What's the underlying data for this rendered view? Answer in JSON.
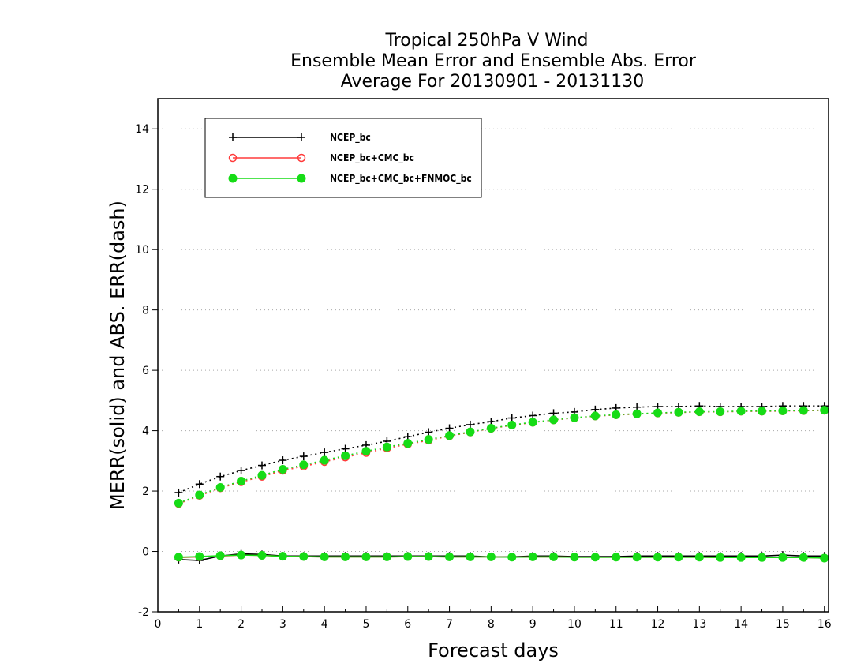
{
  "chart_data": {
    "type": "line",
    "title": [
      "Tropical 250hPa V Wind",
      "Ensemble Mean Error and Ensemble Abs. Error",
      "Average For 20130901 - 20131130"
    ],
    "xlabel": "Forecast days",
    "ylabel": "MERR(solid) and ABS. ERR(dash)",
    "xlim": [
      0,
      16.1
    ],
    "ylim": [
      -2,
      15
    ],
    "xticks": [
      "0",
      "1",
      "2",
      "3",
      "4",
      "5",
      "6",
      "7",
      "8",
      "9",
      "10",
      "11",
      "12",
      "13",
      "14",
      "15",
      "16"
    ],
    "yticks": [
      "-2",
      "0",
      "2",
      "4",
      "6",
      "8",
      "10",
      "12",
      "14"
    ],
    "grid": "dotted-horizontal",
    "legend_position": "top-left",
    "x": [
      0.5,
      1,
      1.5,
      2,
      2.5,
      3,
      3.5,
      4,
      4.5,
      5,
      5.5,
      6,
      6.5,
      7,
      7.5,
      8,
      8.5,
      9,
      9.5,
      10,
      10.5,
      11,
      11.5,
      12,
      12.5,
      13,
      13.5,
      14,
      14.5,
      15,
      15.5,
      16
    ],
    "series": [
      {
        "name": "NCEP_bc",
        "color": "#000000",
        "marker": "plus",
        "merr": [
          -0.27,
          -0.3,
          -0.15,
          -0.08,
          -0.1,
          -0.15,
          -0.15,
          -0.15,
          -0.15,
          -0.15,
          -0.15,
          -0.15,
          -0.15,
          -0.15,
          -0.15,
          -0.18,
          -0.18,
          -0.15,
          -0.15,
          -0.17,
          -0.17,
          -0.17,
          -0.15,
          -0.15,
          -0.15,
          -0.15,
          -0.15,
          -0.15,
          -0.15,
          -0.12,
          -0.15,
          -0.15
        ],
        "abs_err": [
          1.95,
          2.23,
          2.48,
          2.68,
          2.85,
          3.02,
          3.15,
          3.28,
          3.4,
          3.52,
          3.65,
          3.8,
          3.95,
          4.08,
          4.2,
          4.3,
          4.42,
          4.5,
          4.58,
          4.62,
          4.7,
          4.75,
          4.78,
          4.8,
          4.8,
          4.82,
          4.8,
          4.8,
          4.8,
          4.82,
          4.82,
          4.82
        ]
      },
      {
        "name": "NCEP_bc+CMC_bc",
        "color": "#ff3b3b",
        "marker": "open-circle",
        "merr": [
          -0.2,
          -0.18,
          -0.15,
          -0.12,
          -0.13,
          -0.16,
          -0.17,
          -0.18,
          -0.18,
          -0.18,
          -0.18,
          -0.17,
          -0.17,
          -0.18,
          -0.18,
          -0.18,
          -0.19,
          -0.18,
          -0.18,
          -0.19,
          -0.19,
          -0.19,
          -0.19,
          -0.19,
          -0.19,
          -0.19,
          -0.2,
          -0.2,
          -0.2,
          -0.2,
          -0.2,
          -0.22
        ],
        "abs_err": [
          1.58,
          1.85,
          2.1,
          2.3,
          2.48,
          2.68,
          2.82,
          2.97,
          3.12,
          3.27,
          3.42,
          3.55,
          3.68,
          3.82,
          3.95,
          4.07,
          4.18,
          4.27,
          4.35,
          4.42,
          4.48,
          4.52,
          4.55,
          4.58,
          4.6,
          4.62,
          4.62,
          4.64,
          4.64,
          4.65,
          4.66,
          4.67
        ]
      },
      {
        "name": "NCEP_bc+CMC_bc+FNMOC_bc",
        "color": "#16dc16",
        "marker": "filled-circle",
        "merr": [
          -0.19,
          -0.17,
          -0.14,
          -0.12,
          -0.13,
          -0.16,
          -0.17,
          -0.18,
          -0.18,
          -0.18,
          -0.18,
          -0.17,
          -0.17,
          -0.18,
          -0.18,
          -0.18,
          -0.19,
          -0.18,
          -0.18,
          -0.19,
          -0.19,
          -0.19,
          -0.19,
          -0.19,
          -0.19,
          -0.19,
          -0.2,
          -0.2,
          -0.2,
          -0.2,
          -0.2,
          -0.22
        ],
        "abs_err": [
          1.6,
          1.87,
          2.12,
          2.33,
          2.52,
          2.72,
          2.87,
          3.02,
          3.17,
          3.32,
          3.46,
          3.58,
          3.71,
          3.84,
          3.96,
          4.08,
          4.19,
          4.28,
          4.36,
          4.43,
          4.49,
          4.53,
          4.56,
          4.59,
          4.61,
          4.63,
          4.63,
          4.65,
          4.65,
          4.66,
          4.67,
          4.68
        ]
      }
    ]
  }
}
